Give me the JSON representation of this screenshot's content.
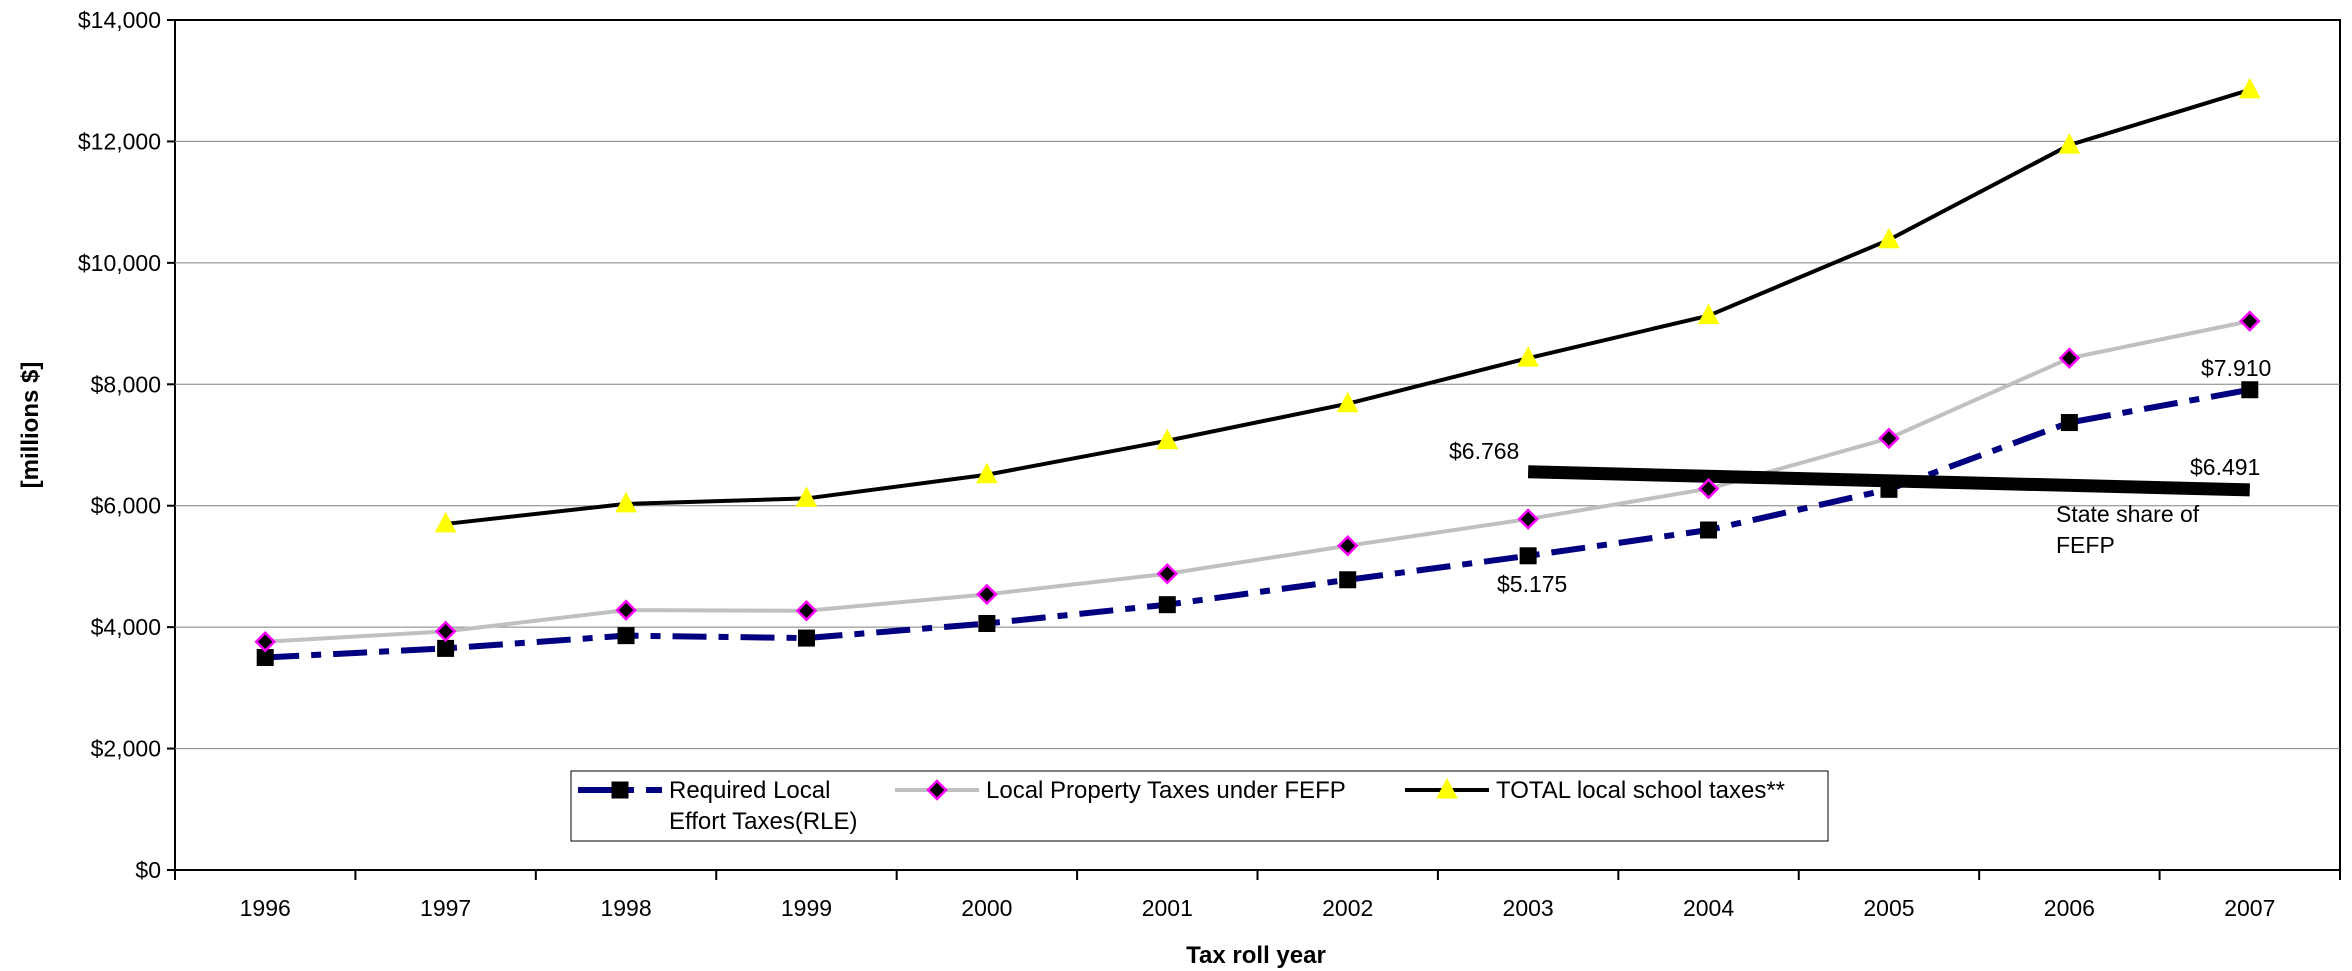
{
  "chart_data": {
    "type": "line",
    "x": [
      "1996",
      "1997",
      "1998",
      "1999",
      "2000",
      "2001",
      "2002",
      "2003",
      "2004",
      "2005",
      "2006",
      "2007"
    ],
    "series": [
      {
        "name": "Required Local Effort Taxes(RLE)",
        "name_lines": [
          "Required Local",
          "Effort Taxes(RLE)"
        ],
        "values": [
          3500,
          3650,
          3860,
          3820,
          4060,
          4370,
          4780,
          5175,
          5600,
          6270,
          7370,
          7910
        ],
        "color": "#000080",
        "marker": "square",
        "marker_color": "#000000",
        "dash": "dash-dot"
      },
      {
        "name": "Local Property Taxes under FEFP",
        "values": [
          3760,
          3930,
          4280,
          4270,
          4540,
          4880,
          5340,
          5780,
          6280,
          7110,
          8430,
          9040
        ],
        "color": "#c0c0c0",
        "marker": "diamond",
        "marker_color": "#000000",
        "marker_edge": "#ff00ff",
        "dash": "solid"
      },
      {
        "name": "TOTAL local school taxes**",
        "values": [
          null,
          5700,
          6030,
          6120,
          6510,
          7070,
          7680,
          8430,
          9130,
          10380,
          11940,
          12850
        ],
        "color": "#000000",
        "marker": "triangle",
        "marker_color": "#ffff00",
        "dash": "solid"
      }
    ],
    "trend_line": {
      "x_start": "2003",
      "y_start": 6560,
      "x_end": "2007",
      "y_end": 6260,
      "color": "#000000"
    },
    "annotations": [
      {
        "id": "a2003state",
        "text": "$6.768"
      },
      {
        "id": "a2003rle",
        "text": "$5.175"
      },
      {
        "id": "a2007rle",
        "text": "$7.910"
      },
      {
        "id": "a2007state",
        "text": "$6.491"
      },
      {
        "id": "state-share",
        "lines": [
          "State share of",
          "FEFP"
        ]
      }
    ],
    "ylim": [
      0,
      14000
    ],
    "yticks": [
      "$0",
      "$2,000",
      "$4,000",
      "$6,000",
      "$8,000",
      "$10,000",
      "$12,000",
      "$14,000"
    ],
    "ylabel": "[millions $]",
    "xlabel": "Tax roll year",
    "grid": true,
    "legend_position": "bottom-center"
  }
}
